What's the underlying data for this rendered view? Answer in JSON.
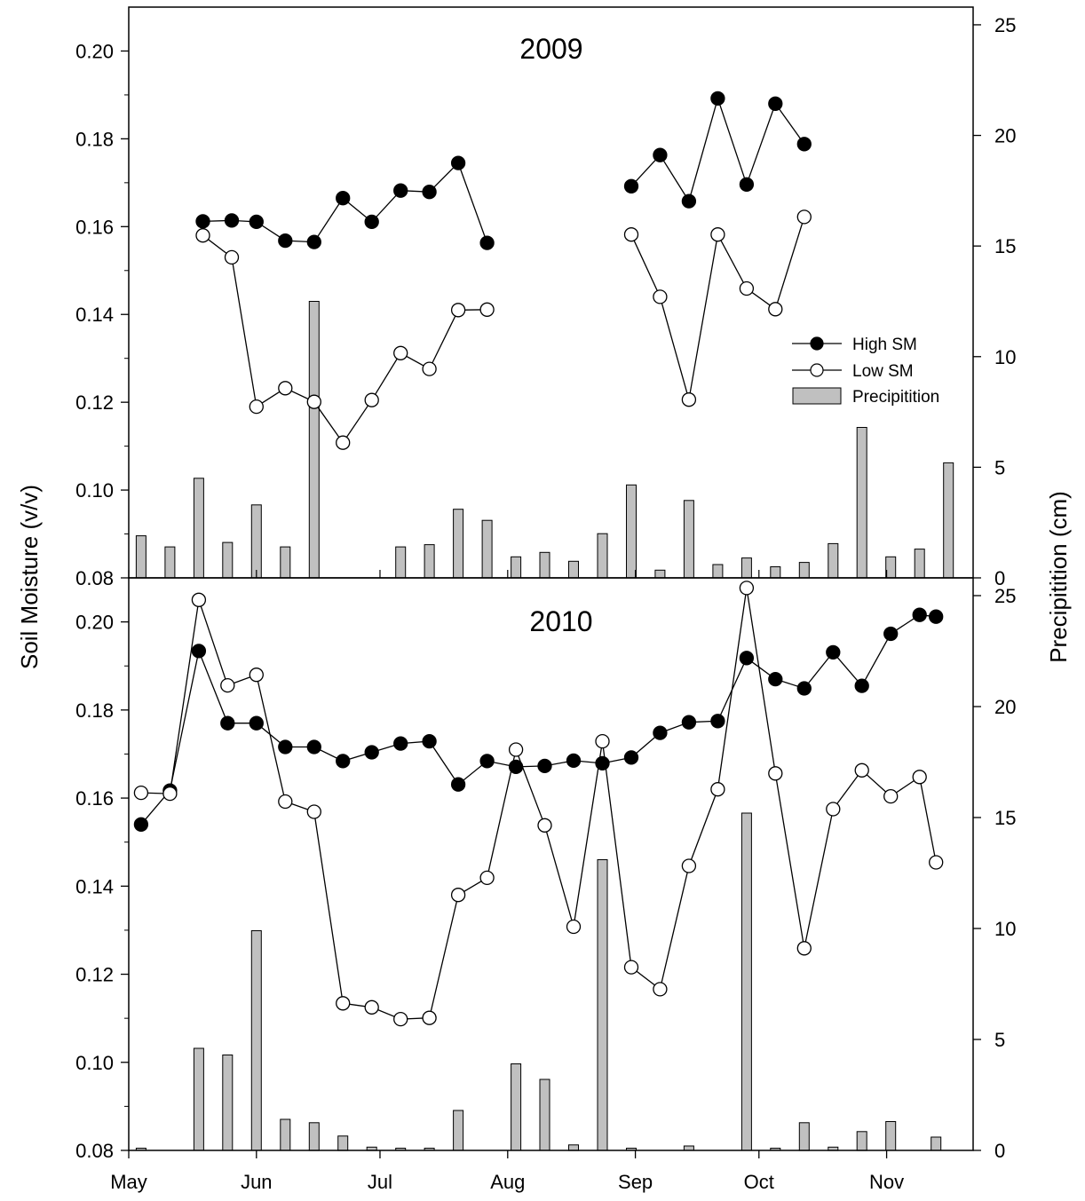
{
  "figure": {
    "left_axis_label": "Soil Moisture (v/v)",
    "right_axis_label": "Precipitition (cm)",
    "month_labels": [
      "May",
      "Jun",
      "Jul",
      "Aug",
      "Sep",
      "Oct",
      "Nov"
    ],
    "legend": {
      "high_sm": "High SM",
      "low_sm": "Low SM",
      "precip": "Precipitition"
    },
    "colors": {
      "bar_fill": "#c0c0c0",
      "line": "#000000",
      "high_marker": "#000000",
      "low_marker": "#ffffff"
    }
  },
  "chart_data": [
    {
      "type": "line",
      "title": "2009",
      "x_unit": "day of month (May 1 = day 0)",
      "xlim": [
        "May 1",
        "Nov 22"
      ],
      "ylabel": "Soil Moisture (v/v)",
      "ylim": [
        0.08,
        0.21
      ],
      "yticks": [
        0.08,
        0.1,
        0.12,
        0.14,
        0.16,
        0.18,
        0.2
      ],
      "y2label": "Precipitition (cm)",
      "y2lim": [
        0,
        25.8
      ],
      "y2ticks": [
        0,
        5,
        10,
        15,
        20,
        25
      ],
      "legend_position": "right",
      "series": [
        {
          "name": "High SM",
          "kind": "line-marker-filled",
          "x": [
            "May 19",
            "May 26",
            "Jun 1",
            "Jun 8",
            "Jun 15",
            "Jun 22",
            "Jun 29",
            "Jul 6",
            "Jul 13",
            "Jul 20",
            "Jul 27",
            null,
            "Aug 31",
            "Sep 7",
            "Sep 14",
            "Sep 21",
            "Sep 28",
            "Oct 5",
            "Oct 12"
          ],
          "values": [
            0.1612,
            0.1614,
            0.1611,
            0.1568,
            0.1565,
            0.1665,
            0.1611,
            0.1682,
            0.1679,
            0.1745,
            0.1563,
            null,
            0.1692,
            0.1763,
            0.1658,
            0.1892,
            0.1696,
            0.188,
            0.1788
          ]
        },
        {
          "name": "Low SM",
          "kind": "line-marker-open",
          "x": [
            "May 19",
            "May 26",
            "Jun 1",
            "Jun 8",
            "Jun 15",
            "Jun 22",
            "Jun 29",
            "Jul 6",
            "Jul 13",
            "Jul 20",
            "Jul 27",
            null,
            "Aug 31",
            "Sep 7",
            "Sep 14",
            "Sep 21",
            "Sep 28",
            "Oct 5",
            "Oct 12"
          ],
          "values": [
            0.158,
            0.153,
            0.119,
            0.1232,
            0.1201,
            0.1108,
            0.1205,
            0.1312,
            0.1276,
            0.141,
            0.1411,
            null,
            0.1582,
            0.144,
            0.1206,
            0.1582,
            0.1459,
            0.1412,
            0.1622
          ]
        },
        {
          "name": "Precipitition",
          "kind": "bar",
          "axis": "right",
          "x": [
            "May 4",
            "May 11",
            "May 18",
            "May 25",
            "Jun 1",
            "Jun 8",
            "Jun 15",
            "Jun 29",
            "Jul 6",
            "Jul 13",
            "Jul 20",
            "Jul 27",
            "Aug 3",
            "Aug 10",
            "Aug 17",
            "Aug 24",
            "Aug 31",
            "Sep 7",
            "Sep 14",
            "Sep 21",
            "Sep 28",
            "Oct 5",
            "Oct 12",
            "Oct 19",
            "Oct 26",
            "Nov 2",
            "Nov 9",
            "Nov 16"
          ],
          "values": [
            1.9,
            1.4,
            4.5,
            1.6,
            3.3,
            1.4,
            12.5,
            0.0,
            1.4,
            1.5,
            3.1,
            2.6,
            0.95,
            1.15,
            0.75,
            2.0,
            4.2,
            0.35,
            3.5,
            0.6,
            0.9,
            0.5,
            0.7,
            1.55,
            6.8,
            0.95,
            1.3,
            5.2
          ]
        }
      ]
    },
    {
      "type": "line",
      "title": "2010",
      "x_unit": "day of month (May 1 = day 0)",
      "xlim": [
        "May 1",
        "Nov 22"
      ],
      "xticks": [
        "May",
        "Jun",
        "Jul",
        "Aug",
        "Sep",
        "Oct",
        "Nov"
      ],
      "ylabel": "Soil Moisture (v/v)",
      "ylim": [
        0.08,
        0.21
      ],
      "yticks": [
        0.08,
        0.1,
        0.12,
        0.14,
        0.16,
        0.18,
        0.2
      ],
      "y2label": "Precipitition (cm)",
      "y2lim": [
        0,
        25.8
      ],
      "y2ticks": [
        0,
        5,
        10,
        15,
        20,
        25
      ],
      "series": [
        {
          "name": "High SM",
          "kind": "line-marker-filled",
          "x": [
            "May 4",
            "May 11",
            "May 18",
            "May 25",
            "Jun 1",
            "Jun 8",
            "Jun 15",
            "Jun 22",
            "Jun 29",
            "Jul 6",
            "Jul 13",
            "Jul 20",
            "Jul 27",
            "Aug 3",
            "Aug 10",
            "Aug 17",
            "Aug 24",
            "Aug 31",
            "Sep 7",
            "Sep 14",
            "Sep 21",
            "Sep 28",
            "Oct 5",
            "Oct 12",
            "Oct 19",
            "Oct 26",
            "Nov 2",
            "Nov 9",
            "Nov 13"
          ],
          "values": [
            0.154,
            0.1617,
            0.1934,
            0.177,
            0.177,
            0.1716,
            0.1716,
            0.1684,
            0.1704,
            0.1724,
            0.1729,
            0.1631,
            0.1684,
            0.1671,
            0.1673,
            0.1685,
            0.1679,
            0.1692,
            0.1748,
            0.1772,
            0.1775,
            0.1918,
            0.187,
            0.1849,
            0.1931,
            0.1855,
            0.1973,
            0.2016,
            0.2012
          ]
        },
        {
          "name": "Low SM",
          "kind": "line-marker-open",
          "x": [
            "May 4",
            "May 11",
            "May 18",
            "May 25",
            "Jun 1",
            "Jun 8",
            "Jun 15",
            "Jun 22",
            "Jun 29",
            "Jul 6",
            "Jul 13",
            "Jul 20",
            "Jul 27",
            "Aug 3",
            "Aug 10",
            "Aug 17",
            "Aug 24",
            "Aug 31",
            "Sep 7",
            "Sep 14",
            "Sep 21",
            "Sep 28",
            "Oct 5",
            "Oct 12",
            "Oct 19",
            "Oct 26",
            "Nov 2",
            "Nov 9",
            "Nov 13"
          ],
          "values": [
            0.1612,
            0.161,
            0.205,
            0.1856,
            0.188,
            0.1592,
            0.1569,
            0.1134,
            0.1125,
            0.1098,
            0.1101,
            0.138,
            0.1419,
            0.171,
            0.1538,
            0.1308,
            0.1729,
            0.1216,
            0.1166,
            0.1446,
            0.162,
            0.2077,
            0.1656,
            0.1259,
            0.1575,
            0.1663,
            0.1604,
            0.1648,
            0.1454
          ]
        },
        {
          "name": "Precipitition",
          "kind": "bar",
          "axis": "right",
          "x": [
            "May 4",
            "May 18",
            "May 25",
            "Jun 1",
            "Jun 8",
            "Jun 15",
            "Jun 22",
            "Jun 29",
            "Jul 6",
            "Jul 13",
            "Jul 20",
            "Aug 3",
            "Aug 10",
            "Aug 17",
            "Aug 24",
            "Aug 31",
            "Sep 14",
            "Sep 28",
            "Oct 5",
            "Oct 12",
            "Oct 19",
            "Oct 26",
            "Nov 2",
            "Nov 13"
          ],
          "values": [
            0.1,
            4.6,
            4.3,
            9.9,
            1.4,
            1.25,
            0.65,
            0.15,
            0.1,
            0.1,
            1.8,
            3.9,
            3.2,
            0.25,
            13.1,
            0.1,
            0.2,
            15.2,
            0.1,
            1.25,
            0.15,
            0.85,
            1.3,
            0.6
          ]
        }
      ]
    }
  ]
}
